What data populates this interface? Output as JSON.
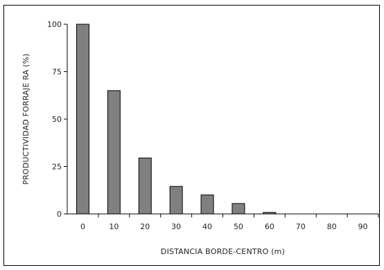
{
  "chart_data": {
    "type": "bar",
    "title": "",
    "xlabel": "DISTANCIA BORDE-CENTRO (m)",
    "ylabel": "PRODUCTIVIDAD FORRAJE RA (%)",
    "categories": [
      "0",
      "10",
      "20",
      "30",
      "40",
      "50",
      "60",
      "70",
      "80",
      "90"
    ],
    "values": [
      100,
      65,
      29.5,
      14.5,
      10,
      5.5,
      0.8,
      0,
      0,
      0
    ],
    "ylim": [
      0,
      100
    ],
    "yticks": [
      "0",
      "25",
      "50",
      "75",
      "100"
    ],
    "grid": false,
    "legend": false,
    "bar_color": "#808080",
    "bar_stroke": "#000000"
  }
}
